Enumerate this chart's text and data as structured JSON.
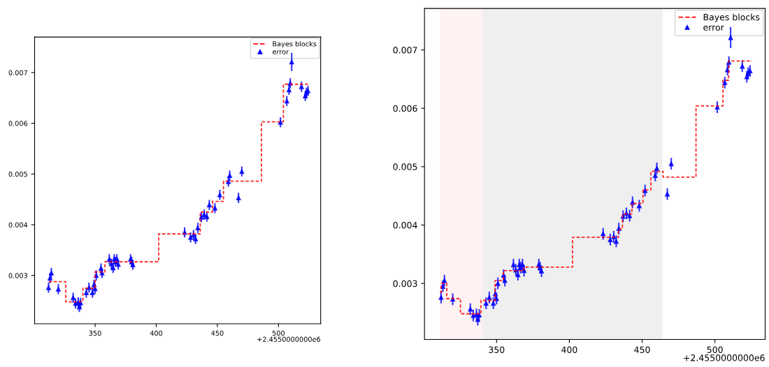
{
  "chart_data": [
    {
      "type": "scatter",
      "xlim": [
        300.5,
        534.5
      ],
      "ylim": [
        0.00205,
        0.0077
      ],
      "xticks": [
        350,
        400,
        450,
        500
      ],
      "yticks": [
        0.003,
        0.004,
        0.005,
        0.006,
        0.007
      ],
      "legend": "top right",
      "annotations": [
        "+2.4550000000e6"
      ],
      "series": [
        {
          "name": "Bayes blocks",
          "type": "step",
          "color": "#ff0000",
          "line_style": "dashed",
          "marker": "none",
          "x": [
            312,
            326,
            340,
            350,
            358,
            402,
            436,
            446,
            455,
            486,
            504,
            524
          ],
          "values": [
            0.00288,
            0.00248,
            0.00275,
            0.00307,
            0.00327,
            0.00382,
            0.00425,
            0.00446,
            0.00486,
            0.00603,
            0.00677,
            0.00677
          ]
        },
        {
          "name": "error",
          "color": "#0000ff",
          "marker": "triangle",
          "x": [
            311.9,
            313.1,
            314.2,
            319.9,
            332.0,
            334.0,
            336.2,
            337.1,
            338.1,
            342.8,
            345.0,
            347.8,
            349.1,
            350.0,
            350.9,
            354.8,
            355.7,
            361.6,
            363.2,
            364.7,
            365.6,
            366.5,
            367.8,
            368.9,
            379.0,
            379.9,
            380.9,
            423.2,
            428.1,
            430.5,
            432.2,
            434.0,
            436.9,
            439.2,
            441.4,
            443.4,
            448.0,
            452.0,
            459.0,
            460.1,
            467.3,
            470.0,
            501.6,
            506.8,
            508.6,
            509.6,
            510.8,
            518.8,
            521.9,
            522.8,
            524.1
          ],
          "values": [
            0.00276,
            0.00295,
            0.00305,
            0.00273,
            0.00256,
            0.00245,
            0.00247,
            0.00238,
            0.00246,
            0.00266,
            0.00276,
            0.00266,
            0.00282,
            0.00274,
            0.003,
            0.00314,
            0.00305,
            0.00332,
            0.00323,
            0.00315,
            0.00332,
            0.00327,
            0.00332,
            0.00322,
            0.00332,
            0.00327,
            0.00321,
            0.00385,
            0.00375,
            0.0038,
            0.00372,
            0.00394,
            0.00415,
            0.0042,
            0.00416,
            0.00439,
            0.00433,
            0.00459,
            0.00485,
            0.00497,
            0.00453,
            0.00505,
            0.00602,
            0.00644,
            0.00666,
            0.00679,
            0.00721,
            0.00672,
            0.00654,
            0.0066,
            0.00664
          ],
          "errors": [
            0.0001,
            0.0001,
            0.0001,
            0.0001,
            0.0001,
            0.0001,
            0.0001,
            0.0001,
            0.0001,
            0.0001,
            0.0001,
            0.0001,
            0.0001,
            0.0001,
            0.0001,
            0.0001,
            0.0001,
            0.0001,
            0.0001,
            0.0001,
            0.0001,
            0.0001,
            0.0001,
            0.0001,
            0.0001,
            0.0001,
            0.0001,
            0.0001,
            0.0001,
            0.0001,
            0.0001,
            0.0001,
            0.0001,
            0.0001,
            0.0001,
            0.0001,
            0.0001,
            0.0001,
            0.0001,
            0.0001,
            0.0001,
            0.0001,
            0.0001,
            0.0001,
            0.0001,
            0.0001,
            0.00018,
            0.0001,
            0.0001,
            0.0001,
            0.0001
          ]
        }
      ]
    },
    {
      "type": "scatter",
      "xlim": [
        300.5,
        534.5
      ],
      "ylim": [
        0.00204,
        0.00771
      ],
      "xticks": [
        350,
        400,
        450,
        500
      ],
      "yticks": [
        0.003,
        0.004,
        0.005,
        0.006,
        0.007
      ],
      "legend": "top right",
      "annotations": [
        "+2.4550000000e6"
      ],
      "bands": [
        {
          "axis": "x",
          "from": 311,
          "to": 340,
          "color": "#fff2f2"
        },
        {
          "axis": "x",
          "from": 340,
          "to": 464,
          "color": "#efefef"
        }
      ],
      "series": [
        {
          "name": "Bayes blocks",
          "type": "step",
          "color": "#ff0000",
          "line_style": "dashed",
          "marker": "none",
          "x": [
            311.1,
            312,
            315.8,
            325.2,
            339.3,
            349,
            354.7,
            368.7,
            402.2,
            433.7,
            436.5,
            443,
            450.6,
            456,
            464.4,
            487,
            505.5,
            509.4,
            525.5
          ],
          "values": [
            0.00285,
            0.003,
            0.00274,
            0.00248,
            0.00271,
            0.00305,
            0.00322,
            0.00328,
            0.00379,
            0.00393,
            0.00419,
            0.00437,
            0.0046,
            0.00492,
            0.00482,
            0.00604,
            0.00648,
            0.00681,
            0.00681
          ]
        },
        {
          "name": "error",
          "color": "#0000ff",
          "marker": "triangle",
          "x": [
            311.9,
            313.1,
            314.2,
            319.9,
            332.0,
            334.0,
            336.2,
            337.1,
            338.1,
            342.8,
            345.0,
            347.8,
            349.1,
            350.0,
            350.9,
            354.8,
            355.7,
            361.6,
            363.2,
            364.7,
            365.6,
            366.5,
            367.8,
            368.9,
            379.0,
            379.9,
            380.9,
            423.2,
            428.1,
            430.5,
            432.2,
            434.0,
            436.9,
            439.2,
            441.4,
            443.4,
            448.0,
            452.0,
            459.0,
            460.1,
            467.3,
            470.0,
            501.6,
            506.8,
            508.6,
            509.6,
            510.8,
            518.8,
            521.9,
            522.8,
            524.1
          ],
          "values": [
            0.00276,
            0.00295,
            0.00305,
            0.00273,
            0.00256,
            0.00245,
            0.00247,
            0.00238,
            0.00246,
            0.00266,
            0.00276,
            0.00266,
            0.00282,
            0.00274,
            0.003,
            0.00314,
            0.00305,
            0.00332,
            0.00323,
            0.00315,
            0.00332,
            0.00327,
            0.00332,
            0.00322,
            0.00332,
            0.00327,
            0.00321,
            0.00385,
            0.00375,
            0.0038,
            0.00372,
            0.00394,
            0.00415,
            0.0042,
            0.00416,
            0.00439,
            0.00433,
            0.00459,
            0.00485,
            0.00497,
            0.00453,
            0.00505,
            0.00602,
            0.00644,
            0.00666,
            0.00679,
            0.00721,
            0.00672,
            0.00654,
            0.0066,
            0.00664
          ],
          "errors": [
            0.0001,
            0.0001,
            0.0001,
            0.0001,
            0.0001,
            0.0001,
            0.0001,
            0.0001,
            0.0001,
            0.0001,
            0.0001,
            0.0001,
            0.0001,
            0.0001,
            0.0001,
            0.0001,
            0.0001,
            0.0001,
            0.0001,
            0.0001,
            0.0001,
            0.0001,
            0.0001,
            0.0001,
            0.0001,
            0.0001,
            0.0001,
            0.0001,
            0.0001,
            0.0001,
            0.0001,
            0.0001,
            0.0001,
            0.0001,
            0.0001,
            0.0001,
            0.0001,
            0.0001,
            0.0001,
            0.0001,
            0.0001,
            0.0001,
            0.0001,
            0.0001,
            0.0001,
            0.0001,
            0.00018,
            0.0001,
            0.0001,
            0.0001,
            0.0001
          ]
        }
      ]
    }
  ]
}
